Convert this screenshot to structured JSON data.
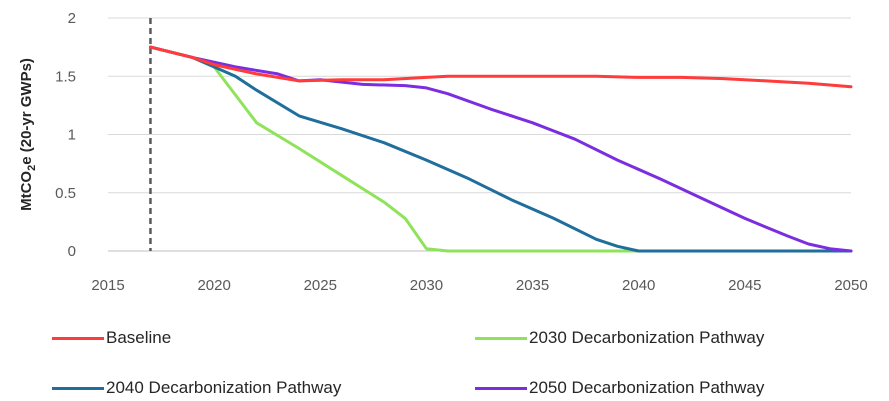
{
  "chart_data": {
    "type": "line",
    "title": "",
    "xlabel": "",
    "ylabel_parts": {
      "pre": "MtCO",
      "sub": "2",
      "post": "e (20-yr GWPs)"
    },
    "xlim": [
      2015,
      2050
    ],
    "ylim": [
      0,
      2
    ],
    "x_ticks": [
      "2015",
      "2020",
      "2025",
      "2030",
      "2035",
      "2040",
      "2045",
      "2050"
    ],
    "y_ticks": [
      "0",
      "0.5",
      "1",
      "1.5",
      "2"
    ],
    "grid": "horizontal",
    "reference_line_x": 2017,
    "legend_position": "bottom",
    "series": [
      {
        "name": "Baseline",
        "color": "#ff3b3b",
        "points": [
          [
            2017,
            1.75
          ],
          [
            2019,
            1.66
          ],
          [
            2020,
            1.6
          ],
          [
            2022,
            1.52
          ],
          [
            2024,
            1.46
          ],
          [
            2026,
            1.47
          ],
          [
            2028,
            1.47
          ],
          [
            2030,
            1.49
          ],
          [
            2031,
            1.5
          ],
          [
            2035,
            1.5
          ],
          [
            2038,
            1.5
          ],
          [
            2040,
            1.49
          ],
          [
            2042,
            1.49
          ],
          [
            2044,
            1.48
          ],
          [
            2046,
            1.46
          ],
          [
            2048,
            1.44
          ],
          [
            2050,
            1.41
          ]
        ]
      },
      {
        "name": "2030 Decarbonization Pathway",
        "color": "#8fe35a",
        "points": [
          [
            2017,
            1.75
          ],
          [
            2019,
            1.66
          ],
          [
            2020,
            1.58
          ],
          [
            2022,
            1.1
          ],
          [
            2024,
            0.88
          ],
          [
            2026,
            0.65
          ],
          [
            2028,
            0.42
          ],
          [
            2029,
            0.28
          ],
          [
            2030,
            0.02
          ],
          [
            2031,
            0
          ],
          [
            2035,
            0
          ],
          [
            2040,
            0
          ],
          [
            2045,
            0
          ],
          [
            2050,
            0
          ]
        ]
      },
      {
        "name": "2040 Decarbonization Pathway",
        "color": "#1f6e9c",
        "points": [
          [
            2017,
            1.75
          ],
          [
            2019,
            1.66
          ],
          [
            2021,
            1.5
          ],
          [
            2022,
            1.38
          ],
          [
            2024,
            1.16
          ],
          [
            2026,
            1.05
          ],
          [
            2028,
            0.93
          ],
          [
            2030,
            0.78
          ],
          [
            2032,
            0.62
          ],
          [
            2034,
            0.44
          ],
          [
            2036,
            0.28
          ],
          [
            2038,
            0.1
          ],
          [
            2039,
            0.04
          ],
          [
            2040,
            0
          ],
          [
            2045,
            0
          ],
          [
            2050,
            0
          ]
        ]
      },
      {
        "name": "2050 Decarbonization Pathway",
        "color": "#7b2ee0",
        "points": [
          [
            2017,
            1.75
          ],
          [
            2019,
            1.66
          ],
          [
            2021,
            1.58
          ],
          [
            2023,
            1.52
          ],
          [
            2024,
            1.46
          ],
          [
            2025,
            1.47
          ],
          [
            2027,
            1.43
          ],
          [
            2029,
            1.42
          ],
          [
            2030,
            1.4
          ],
          [
            2031,
            1.35
          ],
          [
            2033,
            1.22
          ],
          [
            2035,
            1.1
          ],
          [
            2037,
            0.96
          ],
          [
            2039,
            0.78
          ],
          [
            2041,
            0.62
          ],
          [
            2043,
            0.45
          ],
          [
            2045,
            0.28
          ],
          [
            2047,
            0.13
          ],
          [
            2048,
            0.06
          ],
          [
            2049,
            0.02
          ],
          [
            2050,
            0
          ]
        ]
      }
    ]
  },
  "legend": {
    "items": [
      {
        "label": "Baseline",
        "color": "#ff3b3b"
      },
      {
        "label": "2030 Decarbonization Pathway",
        "color": "#8fe35a"
      },
      {
        "label": "2040 Decarbonization Pathway",
        "color": "#1f6e9c"
      },
      {
        "label": "2050 Decarbonization Pathway",
        "color": "#7b2ee0"
      }
    ]
  }
}
